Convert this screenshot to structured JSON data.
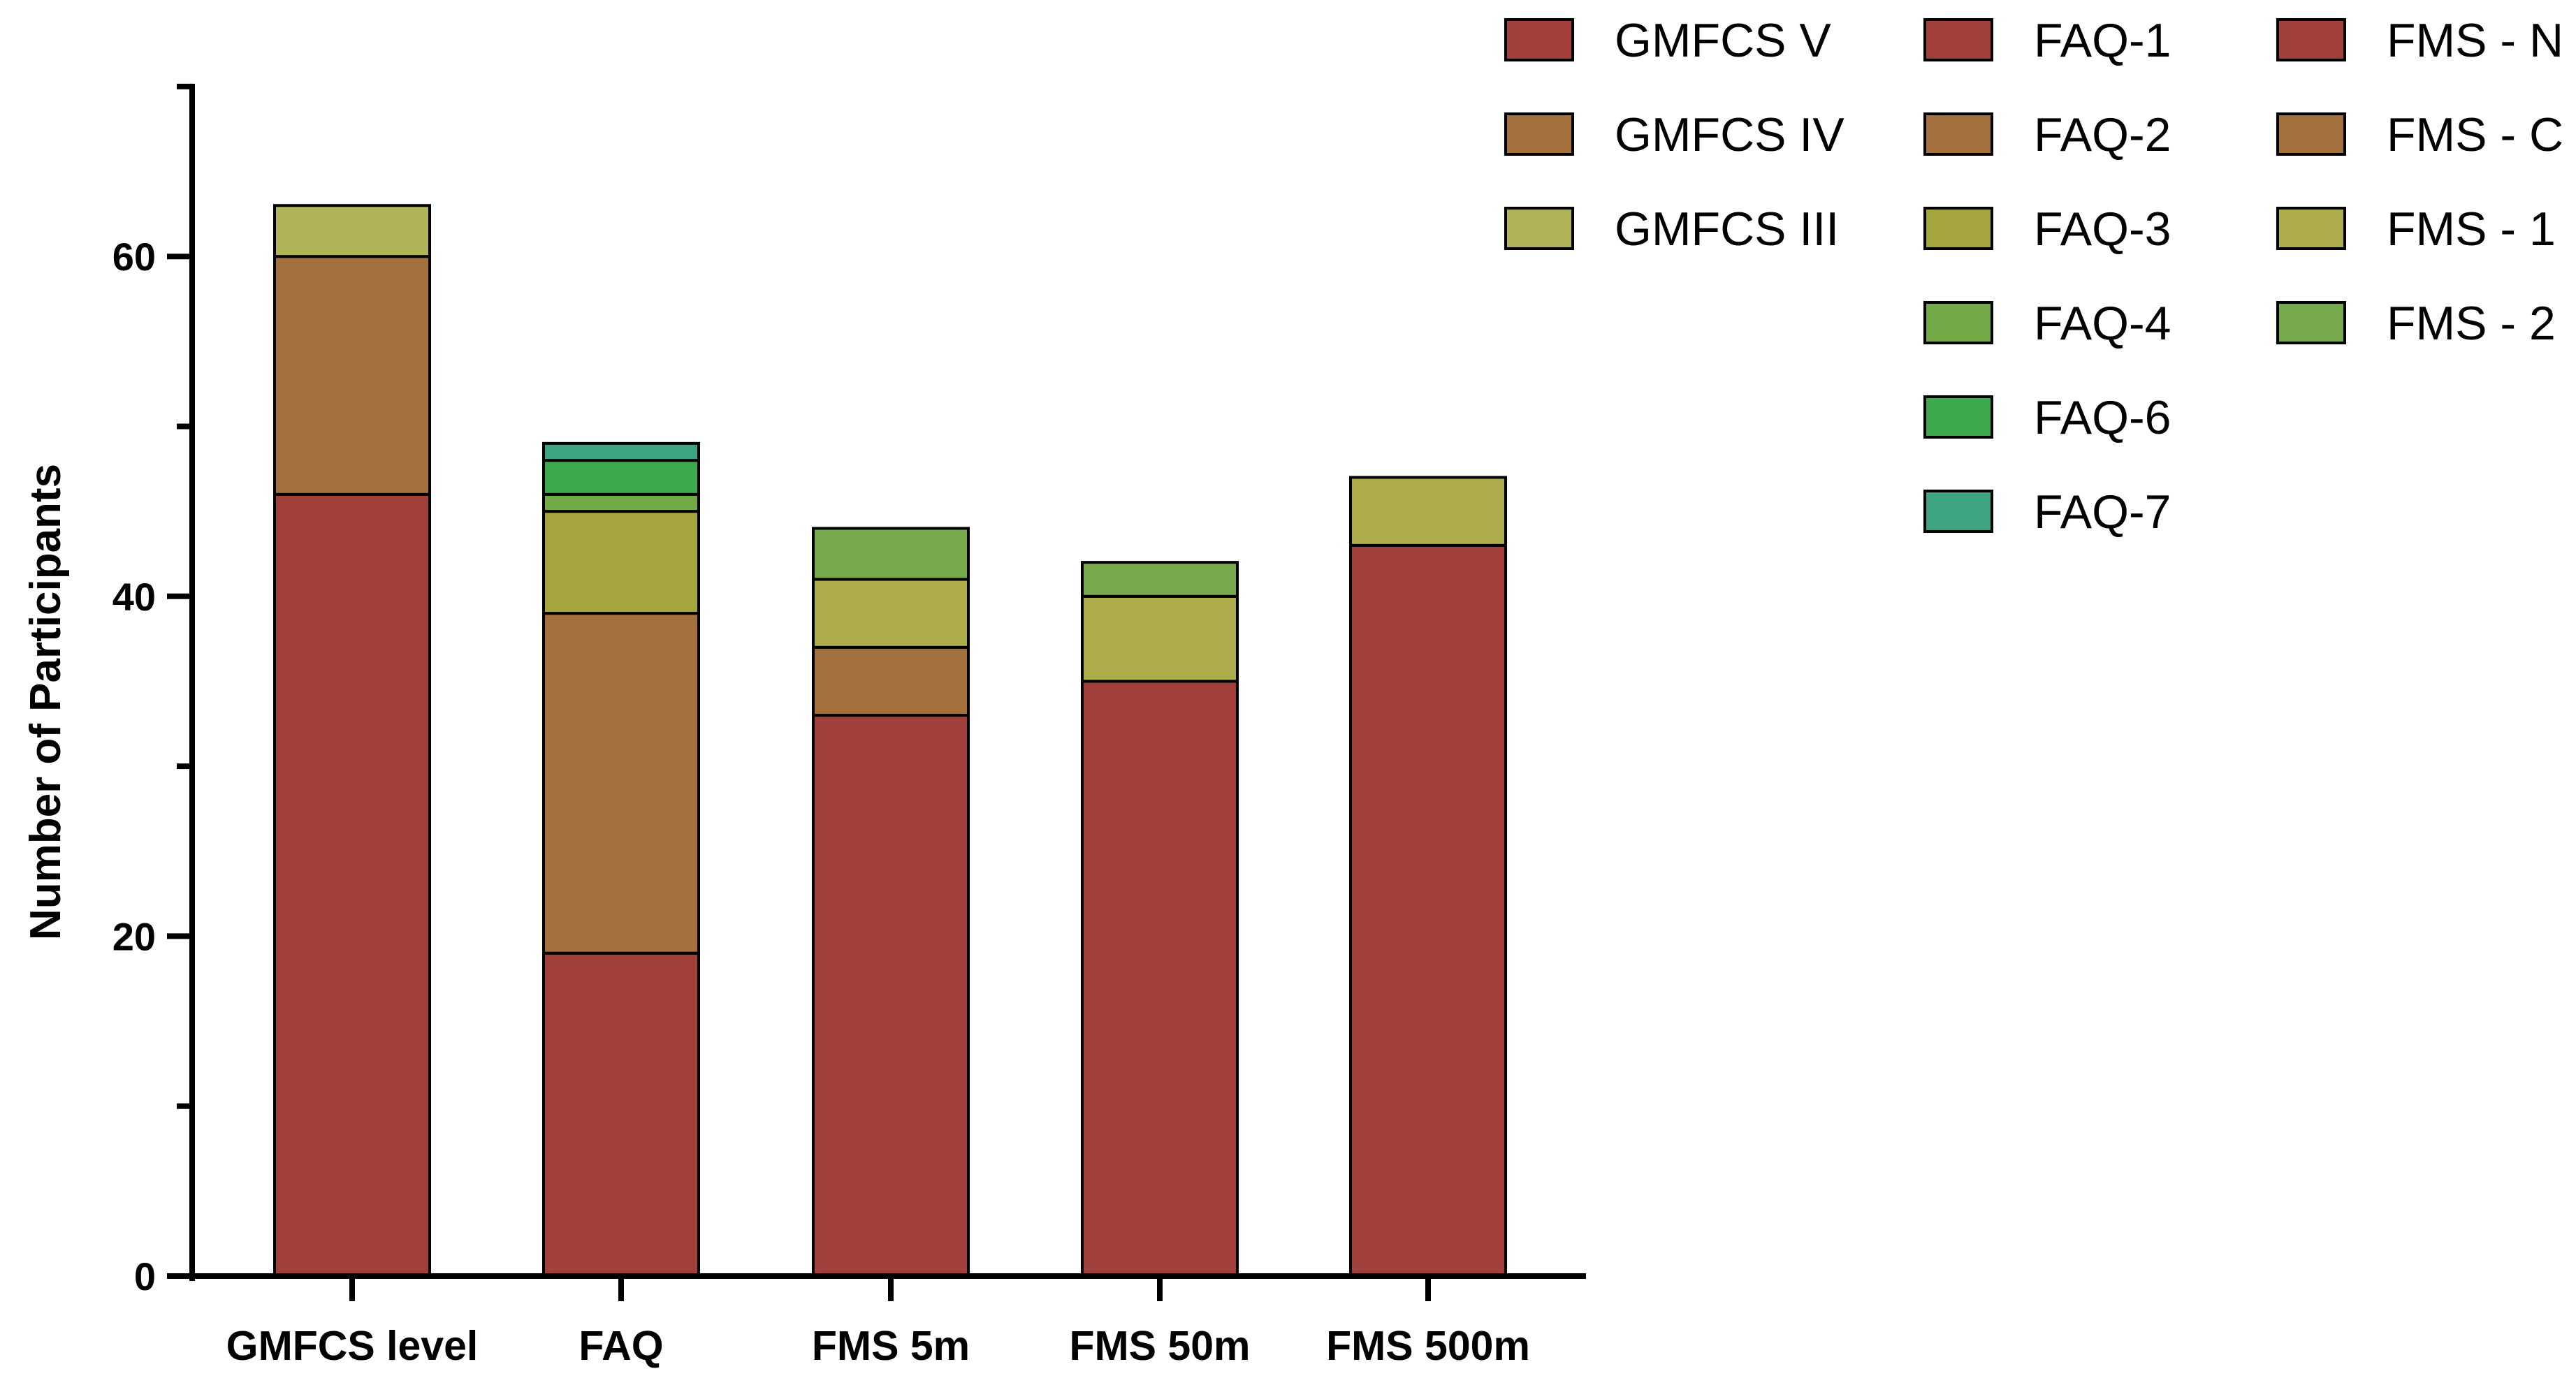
{
  "chart_data": {
    "type": "stacked-bar",
    "ylabel": "Number of Participants",
    "xlabel": "",
    "ylim": [
      0,
      70
    ],
    "yticks": [
      0,
      20,
      40,
      60
    ],
    "yminor_ticks": [
      10,
      30,
      50,
      70
    ],
    "categories": [
      "GMFCS level",
      "FAQ",
      "FMS 5m",
      "FMS 50m",
      "FMS 500m"
    ],
    "bars": [
      {
        "category": "GMFCS level",
        "segments": [
          {
            "name": "GMFCS V",
            "value": 46,
            "color": "#A1403A"
          },
          {
            "name": "GMFCS IV",
            "value": 14,
            "color": "#A3713D"
          },
          {
            "name": "GMFCS III",
            "value": 3,
            "color": "#B0B35A"
          }
        ]
      },
      {
        "category": "FAQ",
        "segments": [
          {
            "name": "FAQ-1",
            "value": 19,
            "color": "#A1403A"
          },
          {
            "name": "FAQ-2",
            "value": 20,
            "color": "#A3713D"
          },
          {
            "name": "FAQ-3",
            "value": 6,
            "color": "#A5A53E"
          },
          {
            "name": "FAQ-4",
            "value": 1,
            "color": "#73AA47"
          },
          {
            "name": "FAQ-6",
            "value": 2,
            "color": "#3EAA4D"
          },
          {
            "name": "FAQ-7",
            "value": 1,
            "color": "#3DA381"
          }
        ]
      },
      {
        "category": "FMS 5m",
        "segments": [
          {
            "name": "FMS - N",
            "value": 33,
            "color": "#A1403A"
          },
          {
            "name": "FMS - C",
            "value": 4,
            "color": "#A3713D"
          },
          {
            "name": "FMS - 1",
            "value": 4,
            "color": "#AEAD4C"
          },
          {
            "name": "FMS - 2",
            "value": 3,
            "color": "#75A94C"
          }
        ]
      },
      {
        "category": "FMS 50m",
        "segments": [
          {
            "name": "FMS - N",
            "value": 35,
            "color": "#A1403A"
          },
          {
            "name": "FMS - 1",
            "value": 5,
            "color": "#AEAD4C"
          },
          {
            "name": "FMS - 2",
            "value": 2,
            "color": "#75A94C"
          }
        ]
      },
      {
        "category": "FMS 500m",
        "segments": [
          {
            "name": "FMS - N",
            "value": 43,
            "color": "#A1403A"
          },
          {
            "name": "FMS - 1",
            "value": 4,
            "color": "#AEAD4C"
          }
        ]
      }
    ],
    "legend": {
      "placement": "top-right",
      "columns": [
        [
          {
            "label": "GMFCS V",
            "color": "#A1403A"
          },
          {
            "label": "GMFCS IV",
            "color": "#A3713D"
          },
          {
            "label": "GMFCS III",
            "color": "#B0B35A"
          }
        ],
        [
          {
            "label": "FAQ-1",
            "color": "#A1403A"
          },
          {
            "label": "FAQ-2",
            "color": "#A3713D"
          },
          {
            "label": "FAQ-3",
            "color": "#A5A53E"
          },
          {
            "label": "FAQ-4",
            "color": "#73AA47"
          },
          {
            "label": "FAQ-6",
            "color": "#3EAA4D"
          },
          {
            "label": "FAQ-7",
            "color": "#3DA381"
          }
        ],
        [
          {
            "label": "FMS - N",
            "color": "#A1403A"
          },
          {
            "label": "FMS - C",
            "color": "#A3713D"
          },
          {
            "label": "FMS - 1",
            "color": "#AEAD4C"
          },
          {
            "label": "FMS - 2",
            "color": "#75A94C"
          }
        ]
      ]
    }
  }
}
